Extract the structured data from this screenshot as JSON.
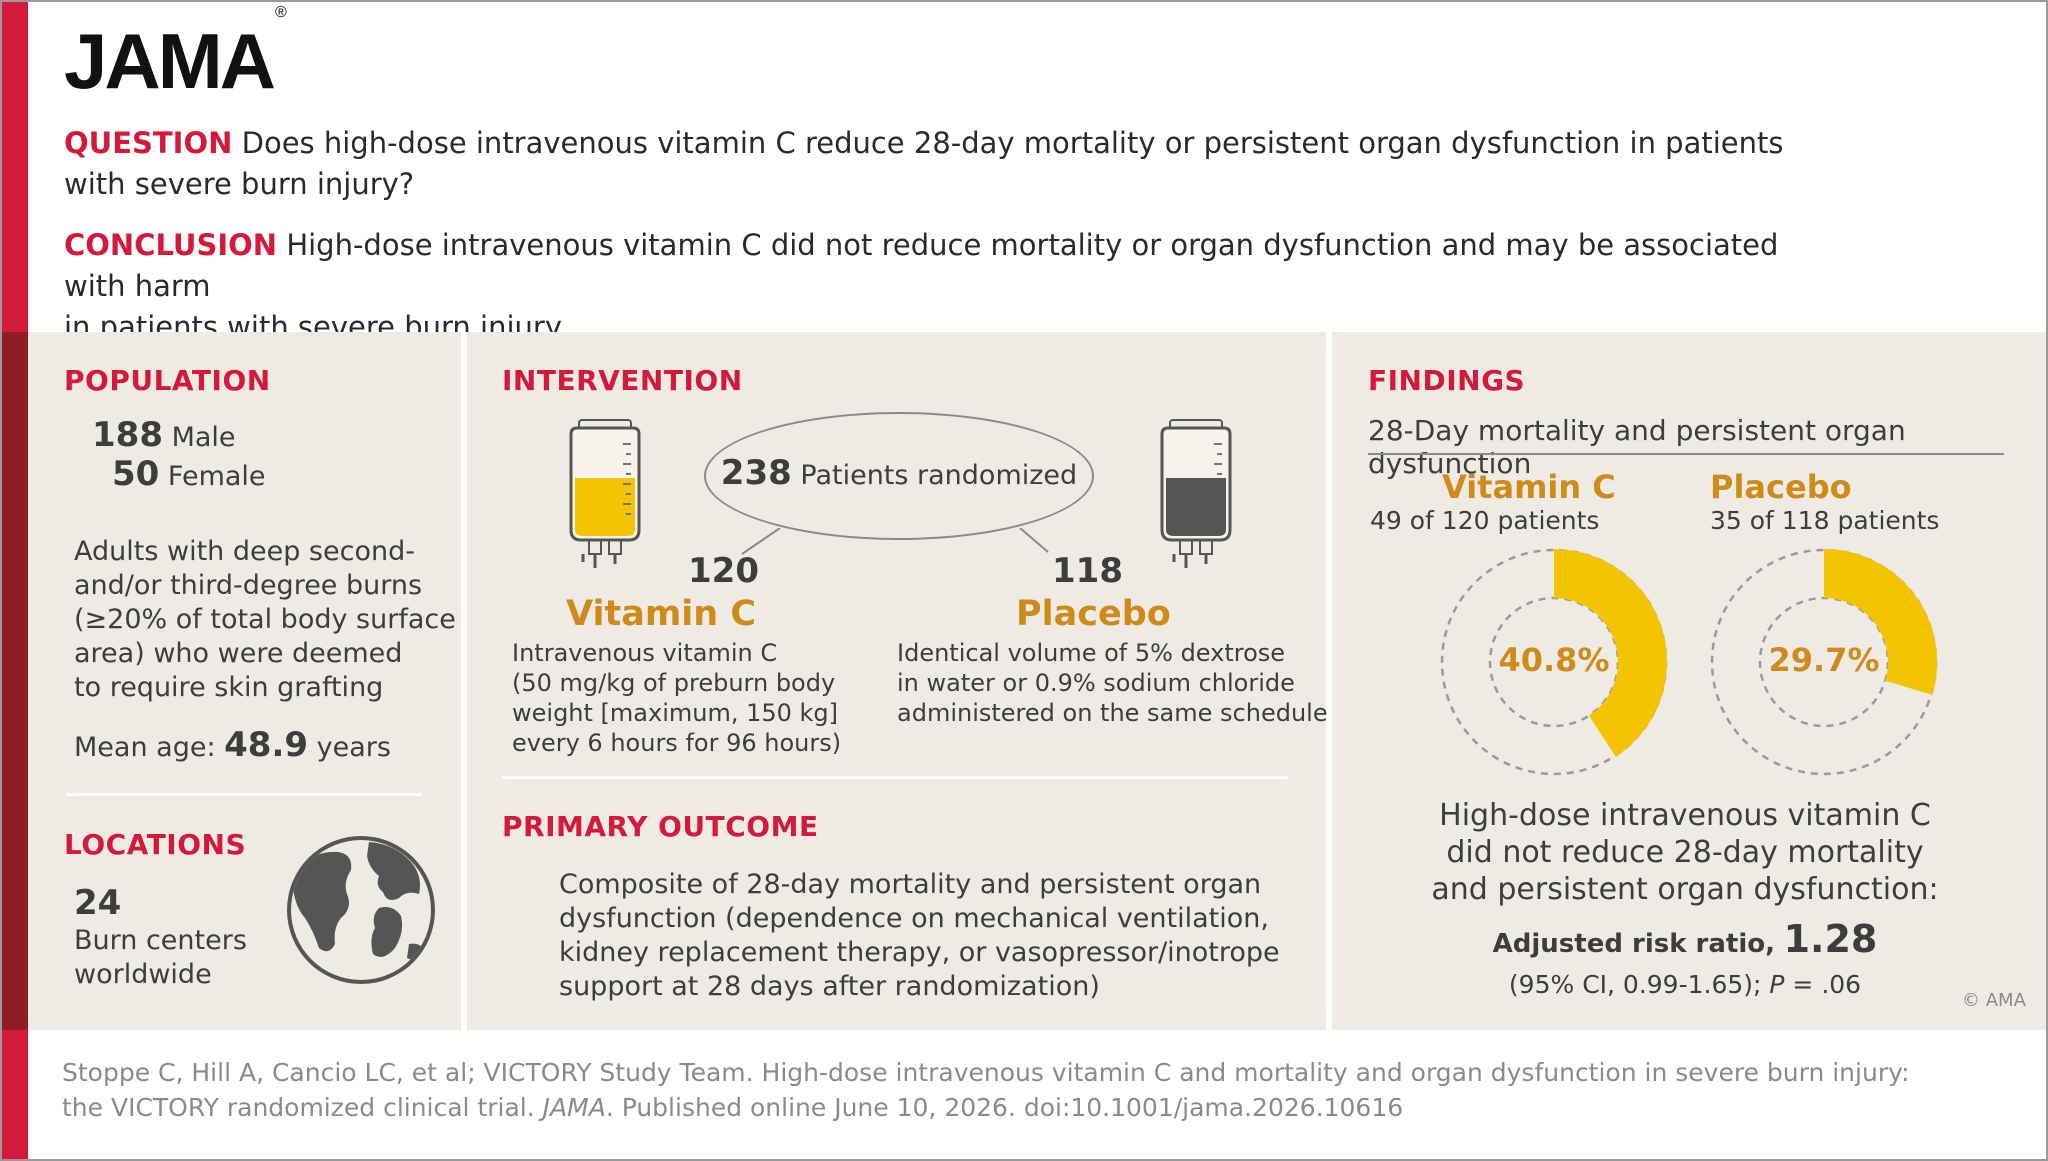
{
  "header": {
    "logo": "JAMA",
    "logo_mark": "®",
    "question_label": "QUESTION",
    "question_text": "Does high-dose intravenous vitamin C reduce 28-day mortality or persistent organ dysfunction in patients",
    "question_text_2": "with severe burn injury?",
    "conclusion_label": "CONCLUSION",
    "conclusion_text": "High-dose intravenous vitamin C did not reduce mortality or organ dysfunction and may be associated with harm",
    "conclusion_text_2": "in patients with severe burn injury."
  },
  "population": {
    "title": "POPULATION",
    "male_count": "188",
    "male_label": "Male",
    "female_count": "50",
    "female_label": "Female",
    "description": [
      "Adults with deep second-",
      "and/or third-degree burns",
      "(≥20% of total body surface",
      "area) who were deemed",
      "to require skin grafting"
    ],
    "mean_age_label": "Mean age:",
    "mean_age_value": "48.9",
    "mean_age_unit": "years"
  },
  "locations": {
    "title": "LOCATIONS",
    "count": "24",
    "line1": "Burn centers",
    "line2": "worldwide",
    "icon": "globe-icon"
  },
  "intervention": {
    "title": "INTERVENTION",
    "randomized_count": "238",
    "randomized_label": "Patients randomized",
    "vitc_count": "120",
    "vitc_title": "Vitamin C",
    "vitc_desc": [
      "Intravenous vitamin C",
      "(50 mg/kg of preburn body",
      "weight [maximum, 150 kg]",
      "every 6 hours for 96 hours)"
    ],
    "placebo_count": "118",
    "placebo_title": "Placebo",
    "placebo_desc": [
      "Identical volume of 5% dextrose",
      "in water or 0.9% sodium chloride",
      "administered on the same schedule"
    ],
    "vitc_bag_color": "#f5c400",
    "placebo_bag_color": "#555555"
  },
  "primary_outcome": {
    "title": "PRIMARY OUTCOME",
    "text": [
      "Composite of 28-day mortality and persistent organ",
      "dysfunction (dependence on mechanical ventilation,",
      "kidney replacement therapy, or vasopressor/inotrope",
      "support at 28 days after randomization)"
    ]
  },
  "findings": {
    "title": "FINDINGS",
    "subtitle": "28-Day mortality and persistent organ dysfunction",
    "vitc_title": "Vitamin C",
    "vitc_sub": "49 of 120 patients",
    "vitc_pct": "40.8%",
    "vitc_fraction": 0.408,
    "placebo_title": "Placebo",
    "placebo_sub": "35 of 118 patients",
    "placebo_pct": "29.7%",
    "placebo_fraction": 0.297,
    "donut_color": "#f5c400",
    "summary": [
      "High-dose intravenous vitamin C",
      "did not reduce 28-day mortality",
      "and persistent organ dysfunction:"
    ],
    "rr_label": "Adjusted risk ratio,",
    "rr_value": "1.28",
    "ci_text": "(95% CI, 0.99-1.65);",
    "p_label": "P",
    "p_value": "= .06"
  },
  "copyright": "© AMA",
  "footer": {
    "line1": "Stoppe C, Hill A, Cancio LC, et al; VICTORY Study Team. High-dose intravenous vitamin C and mortality and organ dysfunction in severe burn injury:",
    "line2_pre": "the VICTORY randomized clinical trial.",
    "line2_journal": "JAMA",
    "line2_post": ". Published online June 10, 2026. doi:10.1001/jama.2026.10616"
  },
  "colors": {
    "accent_red": "#d5193a",
    "dark_red": "#8e1d24",
    "gold": "#d08a1a",
    "panel_bg": "#edebe3"
  }
}
